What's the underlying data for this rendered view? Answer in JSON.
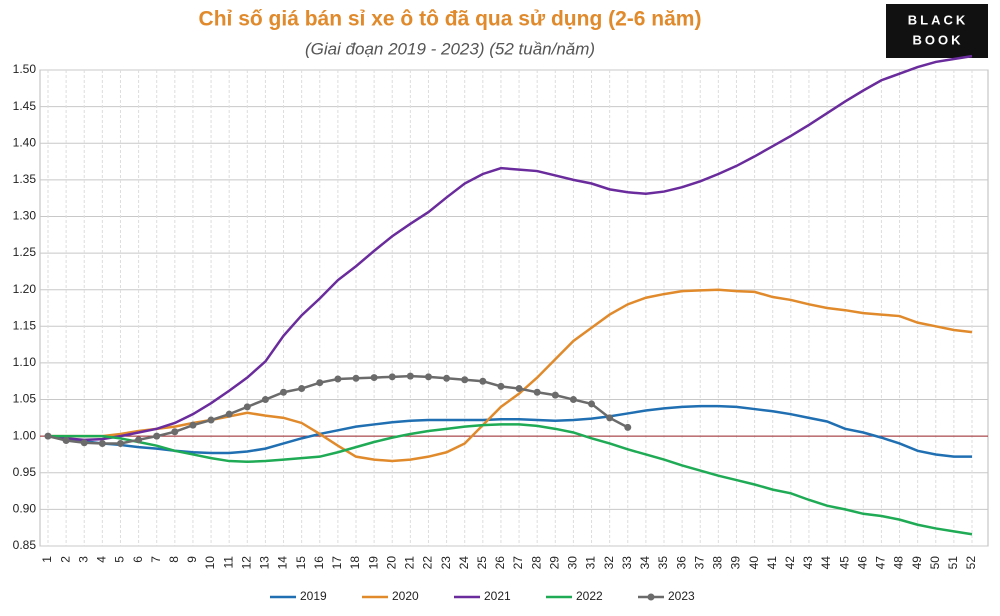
{
  "chart_data": {
    "type": "line",
    "title": "Chỉ số giá bán sỉ xe ô tô đã qua sử dụng (2-6 năm)",
    "subtitle": "(Giai đoạn 2019 - 2023) (52 tuần/năm)",
    "logo": [
      "BLACK",
      "BOOK"
    ],
    "categories": [
      "1",
      "2",
      "3",
      "4",
      "5",
      "6",
      "7",
      "8",
      "9",
      "10",
      "11",
      "12",
      "13",
      "14",
      "15",
      "16",
      "17",
      "18",
      "19",
      "20",
      "21",
      "22",
      "23",
      "24",
      "25",
      "26",
      "27",
      "28",
      "29",
      "30",
      "31",
      "32",
      "33",
      "34",
      "35",
      "36",
      "37",
      "38",
      "39",
      "40",
      "41",
      "42",
      "43",
      "44",
      "45",
      "46",
      "47",
      "48",
      "49",
      "50",
      "51",
      "52"
    ],
    "ylim": [
      0.85,
      1.5
    ],
    "yticks": [
      0.85,
      {
        "value": 0.9,
        "label": "0.90"
      },
      0.95,
      {
        "value": 1,
        "label": "1.00"
      },
      1.05,
      {
        "value": 1.1,
        "label": "1.10"
      },
      1.15,
      {
        "value": 1.2,
        "label": "1.20"
      },
      1.25,
      {
        "value": 1.3,
        "label": "1.30"
      },
      1.35,
      {
        "value": 1.4,
        "label": "1.40"
      },
      1.45,
      {
        "value": 1.5,
        "label": "1.50"
      }
    ],
    "reference_line": 1,
    "grid": true,
    "legend": "bottom",
    "series": [
      {
        "name": "2019",
        "color": "#1f6fb2",
        "values": [
          1.0,
          0.997,
          0.993,
          0.99,
          0.988,
          0.985,
          0.983,
          0.98,
          0.978,
          0.977,
          0.977,
          0.979,
          0.983,
          0.99,
          0.997,
          1.003,
          1.008,
          1.013,
          1.016,
          1.019,
          1.021,
          1.022,
          1.022,
          1.022,
          1.022,
          1.023,
          1.023,
          1.022,
          1.021,
          1.022,
          1.024,
          1.027,
          1.031,
          1.035,
          1.038,
          1.04,
          1.041,
          1.041,
          1.04,
          1.037,
          1.034,
          1.03,
          1.025,
          1.02,
          1.01,
          1.005,
          0.998,
          0.99,
          0.98,
          0.975,
          0.972,
          0.972
        ]
      },
      {
        "name": "2020",
        "color": "#e08a2c",
        "values": [
          1.0,
          1.0,
          1.0,
          1.0,
          1.003,
          1.007,
          1.01,
          1.013,
          1.018,
          1.022,
          1.027,
          1.032,
          1.028,
          1.025,
          1.018,
          1.003,
          0.987,
          0.972,
          0.968,
          0.966,
          0.968,
          0.972,
          0.978,
          0.99,
          1.015,
          1.04,
          1.058,
          1.08,
          1.105,
          1.13,
          1.148,
          1.166,
          1.18,
          1.189,
          1.194,
          1.198,
          1.199,
          1.2,
          1.198,
          1.197,
          1.19,
          1.186,
          1.18,
          1.175,
          1.172,
          1.168,
          1.166,
          1.164,
          1.155,
          1.15,
          1.145,
          1.142
        ]
      },
      {
        "name": "2021",
        "color": "#6a2c9c",
        "values": [
          1.0,
          0.997,
          0.995,
          0.996,
          1.0,
          1.005,
          1.01,
          1.018,
          1.03,
          1.045,
          1.062,
          1.08,
          1.102,
          1.137,
          1.165,
          1.188,
          1.213,
          1.232,
          1.253,
          1.273,
          1.29,
          1.306,
          1.326,
          1.345,
          1.358,
          1.366,
          1.364,
          1.362,
          1.356,
          1.35,
          1.345,
          1.337,
          1.333,
          1.331,
          1.334,
          1.34,
          1.348,
          1.358,
          1.369,
          1.382,
          1.396,
          1.41,
          1.425,
          1.441,
          1.457,
          1.472,
          1.486,
          1.495,
          1.504,
          1.511,
          1.515,
          1.519
        ]
      },
      {
        "name": "2022",
        "color": "#1faa55",
        "values": [
          1.0,
          1.0,
          1.0,
          1.0,
          0.997,
          0.992,
          0.987,
          0.98,
          0.975,
          0.97,
          0.966,
          0.965,
          0.966,
          0.968,
          0.97,
          0.972,
          0.978,
          0.985,
          0.992,
          0.998,
          1.003,
          1.007,
          1.01,
          1.013,
          1.015,
          1.016,
          1.016,
          1.014,
          1.01,
          1.005,
          0.997,
          0.99,
          0.982,
          0.975,
          0.968,
          0.96,
          0.953,
          0.946,
          0.94,
          0.934,
          0.927,
          0.922,
          0.913,
          0.905,
          0.9,
          0.894,
          0.891,
          0.886,
          0.879,
          0.874,
          0.87,
          0.866
        ]
      },
      {
        "name": "2023",
        "color": "#6b6b6b",
        "markers": true,
        "values": [
          1.0,
          0.994,
          0.991,
          0.99,
          0.99,
          0.995,
          1.0,
          1.006,
          1.015,
          1.022,
          1.03,
          1.04,
          1.05,
          1.06,
          1.065,
          1.073,
          1.078,
          1.079,
          1.08,
          1.081,
          1.082,
          1.081,
          1.079,
          1.077,
          1.075,
          1.068,
          1.065,
          1.06,
          1.056,
          1.05,
          1.044,
          1.025,
          1.012,
          null,
          null,
          null,
          null,
          null,
          null,
          null,
          null,
          null,
          null,
          null,
          null,
          null,
          null,
          null,
          null,
          null,
          null,
          null
        ]
      }
    ]
  }
}
